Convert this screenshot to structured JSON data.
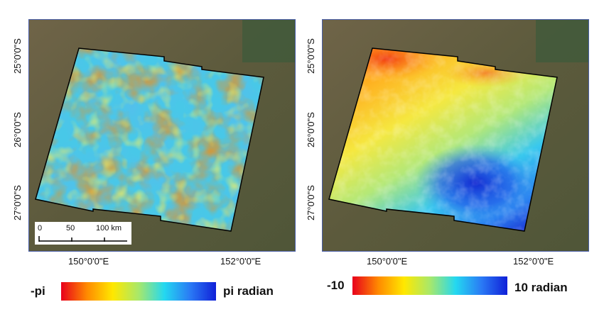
{
  "left_panel": {
    "lat_labels": [
      "25°0'0\"S",
      "26°0'0\"S",
      "27°0'0\"S"
    ],
    "lon_labels": [
      "150°0'0\"E",
      "152°0'0\"E"
    ],
    "scale_labels": [
      "0",
      "50",
      "100 km"
    ],
    "colorbar": {
      "min_label": "-pi",
      "max_label": "pi radian",
      "colors": [
        "#e8001c",
        "#ff8a00",
        "#ffe800",
        "#a8e86a",
        "#24d8f0",
        "#2a7af5",
        "#1020d8"
      ]
    }
  },
  "right_panel": {
    "lat_labels": [
      "25°0'0\"S",
      "26°0'0\"S",
      "27°0'0\"S"
    ],
    "lon_labels": [
      "150°0'0\"E",
      "152°0'0\"E"
    ],
    "colorbar": {
      "min_label": "-10",
      "max_label": "10 radian",
      "colors": [
        "#e8001c",
        "#ff8a00",
        "#ffe800",
        "#a8e86a",
        "#24d8f0",
        "#2a7af5",
        "#1020d8"
      ]
    }
  }
}
